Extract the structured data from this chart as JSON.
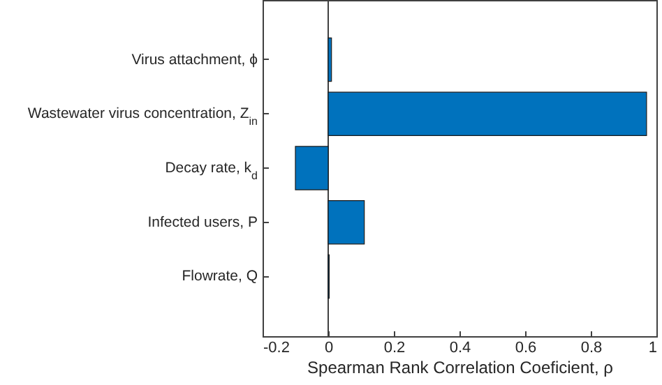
{
  "chart_data": {
    "type": "bar",
    "orientation": "horizontal",
    "xlabel": "Spearman Rank Correlation Coeficient, ρ",
    "categories": [
      "Virus attachment, ϕ",
      "Wastewater virus concentration, Z$_{in}$",
      "Decay rate, k$_{d}$",
      "Infected users, P",
      "Flowrate, Q"
    ],
    "values": [
      0.01,
      0.97,
      -0.1,
      0.11,
      0.003
    ],
    "color": "#0072bd",
    "xlim": [
      -0.2,
      1
    ],
    "xticks": [
      -0.2,
      0,
      0.2,
      0.4,
      0.6,
      0.8,
      1
    ],
    "ref_lines": [
      {
        "axis": "x",
        "value": 0,
        "color": "#404040"
      }
    ]
  }
}
